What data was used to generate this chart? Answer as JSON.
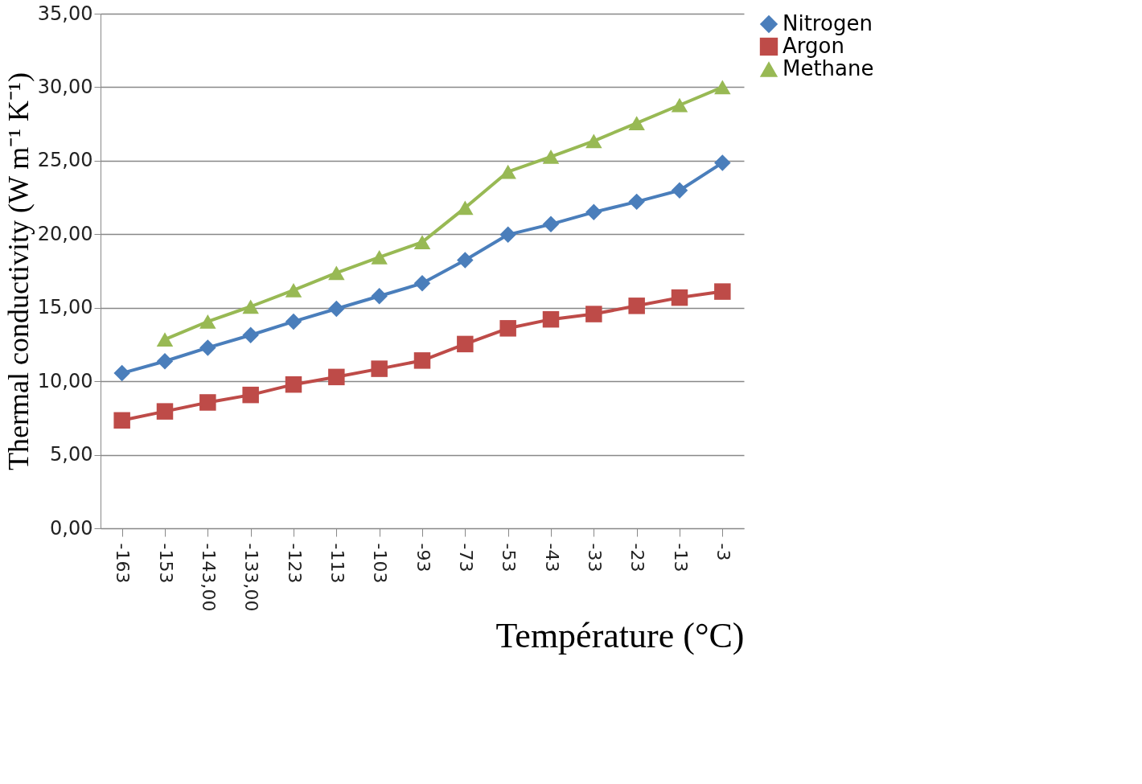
{
  "chart_data": {
    "type": "line",
    "xlabel": "Température (°C)",
    "ylabel": "Thermal conductivity (W m⁻¹ K⁻¹)",
    "categories": [
      "-163",
      "-153",
      "-143,00",
      "-133,00",
      "-123",
      "-113",
      "-103",
      "-93",
      "-73",
      "-53",
      "-43",
      "-33",
      "-23",
      "-13",
      "-3"
    ],
    "series": [
      {
        "name": "Nitrogen",
        "color": "#4a7ebb",
        "marker": "diamond",
        "values": [
          10.55,
          11.36,
          12.28,
          13.14,
          14.06,
          14.93,
          15.79,
          16.66,
          18.24,
          19.97,
          20.68,
          21.5,
          22.21,
          22.98,
          24.86
        ]
      },
      {
        "name": "Argon",
        "color": "#be4b48",
        "marker": "square",
        "values": [
          7.34,
          7.95,
          8.56,
          9.07,
          9.78,
          10.29,
          10.85,
          11.41,
          12.53,
          13.6,
          14.21,
          14.57,
          15.13,
          15.69,
          16.1
        ]
      },
      {
        "name": "Methane",
        "color": "#98b954",
        "marker": "triangle",
        "values": [
          null,
          12.84,
          14.06,
          15.08,
          16.2,
          17.37,
          18.44,
          19.46,
          21.8,
          24.25,
          25.27,
          26.34,
          27.56,
          28.78,
          30.0
        ]
      }
    ],
    "ylim": [
      0,
      35
    ],
    "yticks": [
      {
        "value": 0,
        "label": "0,00"
      },
      {
        "value": 5,
        "label": "5,00"
      },
      {
        "value": 10,
        "label": "10,00"
      },
      {
        "value": 15,
        "label": "15,00"
      },
      {
        "value": 20,
        "label": "20,00"
      },
      {
        "value": 25,
        "label": "25,00"
      },
      {
        "value": 30,
        "label": "30,00"
      },
      {
        "value": 35,
        "label": "35,00"
      }
    ],
    "grid": "y",
    "legend": "right",
    "line_style": "solid"
  }
}
